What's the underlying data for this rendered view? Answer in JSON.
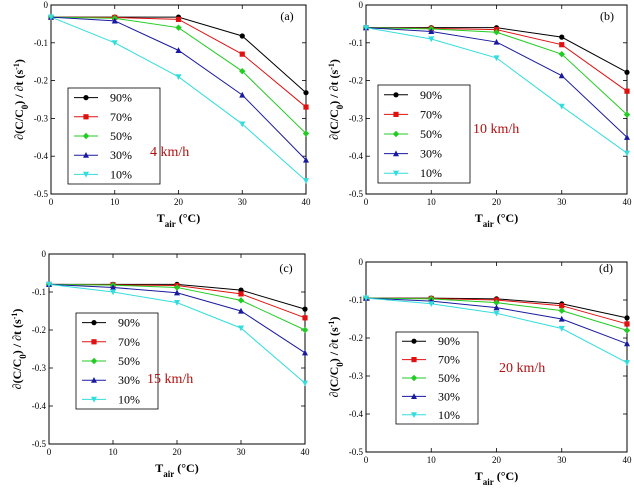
{
  "colors": {
    "90%": "#000000",
    "70%": "#e01010",
    "50%": "#22cc22",
    "30%": "#1a1aa0",
    "10%": "#33dddd",
    "annotation": "#b01010"
  },
  "chart_data": [
    {
      "type": "line",
      "panel_label": "(a)",
      "annotation": "4 km/h",
      "xlabel": "T_air (°C)",
      "ylabel": "∂(C/C0) / ∂t (s-1)",
      "x": [
        0,
        10,
        20,
        30,
        40
      ],
      "xlim": [
        0,
        40
      ],
      "ylim": [
        -0.5,
        0
      ],
      "xticks": [
        0,
        10,
        20,
        30,
        40
      ],
      "yticks": [
        0,
        -0.1,
        -0.2,
        -0.3,
        -0.4,
        -0.5
      ],
      "legend_position": "middle-left",
      "series": [
        {
          "name": "90%",
          "marker": "circle",
          "values": [
            -0.032,
            -0.032,
            -0.032,
            -0.082,
            -0.232
          ]
        },
        {
          "name": "70%",
          "marker": "square",
          "values": [
            -0.032,
            -0.033,
            -0.038,
            -0.13,
            -0.27
          ]
        },
        {
          "name": "50%",
          "marker": "diamond",
          "values": [
            -0.032,
            -0.035,
            -0.06,
            -0.175,
            -0.34
          ]
        },
        {
          "name": "30%",
          "marker": "triangle-up",
          "values": [
            -0.032,
            -0.042,
            -0.12,
            -0.238,
            -0.41
          ]
        },
        {
          "name": "10%",
          "marker": "triangle-down",
          "values": [
            -0.032,
            -0.1,
            -0.19,
            -0.315,
            -0.465
          ]
        }
      ]
    },
    {
      "type": "line",
      "panel_label": "(b)",
      "annotation": "10 km/h",
      "xlabel": "T_air (°C)",
      "ylabel": "∂(C/C0) / ∂t (s-1)",
      "x": [
        0,
        10,
        20,
        30,
        40
      ],
      "xlim": [
        0,
        40
      ],
      "ylim": [
        -0.5,
        0
      ],
      "xticks": [
        0,
        10,
        20,
        30,
        40
      ],
      "yticks": [
        0,
        -0.1,
        -0.2,
        -0.3,
        -0.4,
        -0.5
      ],
      "legend_position": "middle-left",
      "series": [
        {
          "name": "90%",
          "marker": "circle",
          "values": [
            -0.06,
            -0.06,
            -0.06,
            -0.085,
            -0.178
          ]
        },
        {
          "name": "70%",
          "marker": "square",
          "values": [
            -0.06,
            -0.062,
            -0.065,
            -0.105,
            -0.228
          ]
        },
        {
          "name": "50%",
          "marker": "diamond",
          "values": [
            -0.06,
            -0.063,
            -0.072,
            -0.13,
            -0.29
          ]
        },
        {
          "name": "30%",
          "marker": "triangle-up",
          "values": [
            -0.06,
            -0.07,
            -0.098,
            -0.187,
            -0.35
          ]
        },
        {
          "name": "10%",
          "marker": "triangle-down",
          "values": [
            -0.06,
            -0.09,
            -0.14,
            -0.268,
            -0.392
          ]
        }
      ]
    },
    {
      "type": "line",
      "panel_label": "(c)",
      "annotation": "15 km/h",
      "xlabel": "T_air (°C)",
      "ylabel": "∂(C/C0) / ∂t (s-1)",
      "x": [
        0,
        10,
        20,
        30,
        40
      ],
      "xlim": [
        0,
        40
      ],
      "ylim": [
        -0.5,
        0
      ],
      "xticks": [
        0,
        10,
        20,
        30,
        40
      ],
      "yticks": [
        0,
        -0.1,
        -0.2,
        -0.3,
        -0.4,
        -0.5
      ],
      "legend_position": "middle-left",
      "series": [
        {
          "name": "90%",
          "marker": "circle",
          "values": [
            -0.08,
            -0.08,
            -0.08,
            -0.095,
            -0.145
          ]
        },
        {
          "name": "70%",
          "marker": "square",
          "values": [
            -0.08,
            -0.081,
            -0.083,
            -0.105,
            -0.168
          ]
        },
        {
          "name": "50%",
          "marker": "diamond",
          "values": [
            -0.08,
            -0.082,
            -0.088,
            -0.122,
            -0.2
          ]
        },
        {
          "name": "30%",
          "marker": "triangle-up",
          "values": [
            -0.08,
            -0.088,
            -0.102,
            -0.15,
            -0.26
          ]
        },
        {
          "name": "10%",
          "marker": "triangle-down",
          "values": [
            -0.08,
            -0.1,
            -0.128,
            -0.195,
            -0.34
          ]
        }
      ]
    },
    {
      "type": "line",
      "panel_label": "(d)",
      "annotation": "20 km/h",
      "xlabel": "T_air (°C)",
      "ylabel": "∂(C/C0) / ∂t (s-1)",
      "x": [
        0,
        10,
        20,
        30,
        40
      ],
      "xlim": [
        0,
        40
      ],
      "ylim": [
        -0.5,
        0
      ],
      "xticks": [
        0,
        10,
        20,
        30,
        40
      ],
      "yticks": [
        0,
        -0.1,
        -0.2,
        -0.3,
        -0.4,
        -0.5
      ],
      "legend_position": "middle-left",
      "series": [
        {
          "name": "90%",
          "marker": "circle",
          "values": [
            -0.095,
            -0.095,
            -0.097,
            -0.11,
            -0.147
          ]
        },
        {
          "name": "70%",
          "marker": "square",
          "values": [
            -0.095,
            -0.096,
            -0.1,
            -0.115,
            -0.163
          ]
        },
        {
          "name": "50%",
          "marker": "diamond",
          "values": [
            -0.095,
            -0.097,
            -0.107,
            -0.128,
            -0.18
          ]
        },
        {
          "name": "30%",
          "marker": "triangle-up",
          "values": [
            -0.095,
            -0.103,
            -0.12,
            -0.15,
            -0.215
          ]
        },
        {
          "name": "10%",
          "marker": "triangle-down",
          "values": [
            -0.095,
            -0.11,
            -0.135,
            -0.175,
            -0.265
          ]
        }
      ]
    }
  ]
}
